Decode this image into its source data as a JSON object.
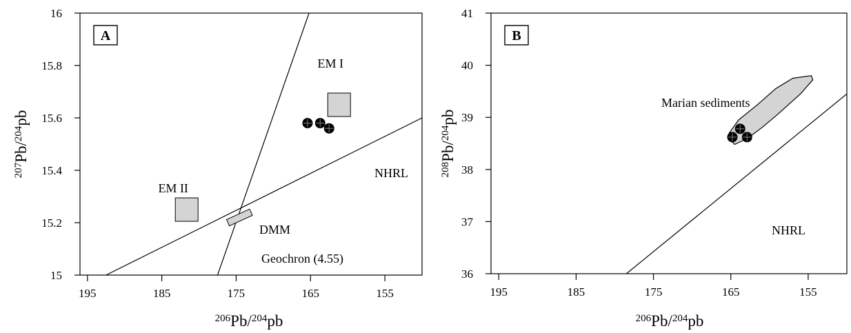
{
  "chart_data": [
    {
      "type": "scatter",
      "panel_label": "A",
      "xlabel": {
        "sup1": "206",
        "base1": "Pb/",
        "sup2": "204",
        "base2": "pb"
      },
      "ylabel": {
        "sup1": "207",
        "base1": "Pb/",
        "sup2": "204",
        "base2": "pb"
      },
      "xlim": [
        196,
        150
      ],
      "ylim": [
        15,
        16
      ],
      "xticks": [
        "195",
        "185",
        "175",
        "165",
        "155"
      ],
      "yticks": [
        "15",
        "15.2",
        "15.4",
        "15.6",
        "15.8",
        "16"
      ],
      "points": [
        {
          "x": 165.4,
          "y": 15.58
        },
        {
          "x": 163.7,
          "y": 15.58
        },
        {
          "x": 162.5,
          "y": 15.56
        }
      ],
      "boxes": [
        {
          "label": "EM I",
          "x": 161.2,
          "y": 15.65
        },
        {
          "label": "EM II",
          "x": 181.7,
          "y": 15.25
        }
      ],
      "dmm": {
        "label": "DMM",
        "x": [
          176.1,
          173.0
        ],
        "y": [
          15.2,
          15.24
        ]
      },
      "lines": [
        {
          "label": "Geochron (4.55)",
          "x": [
            177.5,
            165.2
          ],
          "y": [
            15,
            16
          ]
        },
        {
          "label": "NHRL",
          "x": [
            192.5,
            150
          ],
          "y": [
            15,
            15.6
          ]
        }
      ]
    },
    {
      "type": "scatter",
      "panel_label": "B",
      "xlabel": {
        "sup1": "206",
        "base1": "Pb/",
        "sup2": "204",
        "base2": "pb"
      },
      "ylabel": {
        "sup1": "208",
        "base1": "Pb/",
        "sup2": "204",
        "base2": "pb"
      },
      "xlim": [
        196,
        150
      ],
      "ylim": [
        36,
        41
      ],
      "xticks": [
        "195",
        "185",
        "175",
        "165",
        "155"
      ],
      "yticks": [
        "36",
        "37",
        "38",
        "39",
        "40",
        "41"
      ],
      "points": [
        {
          "x": 164.8,
          "y": 38.62
        },
        {
          "x": 163.8,
          "y": 38.78
        },
        {
          "x": 162.9,
          "y": 38.62
        }
      ],
      "field": {
        "label": "Marian sediments",
        "outline": [
          [
            165.3,
            38.6
          ],
          [
            165.2,
            38.7
          ],
          [
            164.0,
            38.95
          ],
          [
            161.5,
            39.25
          ],
          [
            159.2,
            39.55
          ],
          [
            157.0,
            39.75
          ],
          [
            154.6,
            39.8
          ],
          [
            154.4,
            39.72
          ],
          [
            156.0,
            39.45
          ],
          [
            159.0,
            39.05
          ],
          [
            161.0,
            38.8
          ],
          [
            162.8,
            38.6
          ],
          [
            164.5,
            38.48
          ],
          [
            165.3,
            38.6
          ]
        ]
      },
      "lines": [
        {
          "label": "NHRL",
          "x": [
            178.5,
            150
          ],
          "y": [
            36,
            39.45
          ]
        }
      ]
    }
  ]
}
